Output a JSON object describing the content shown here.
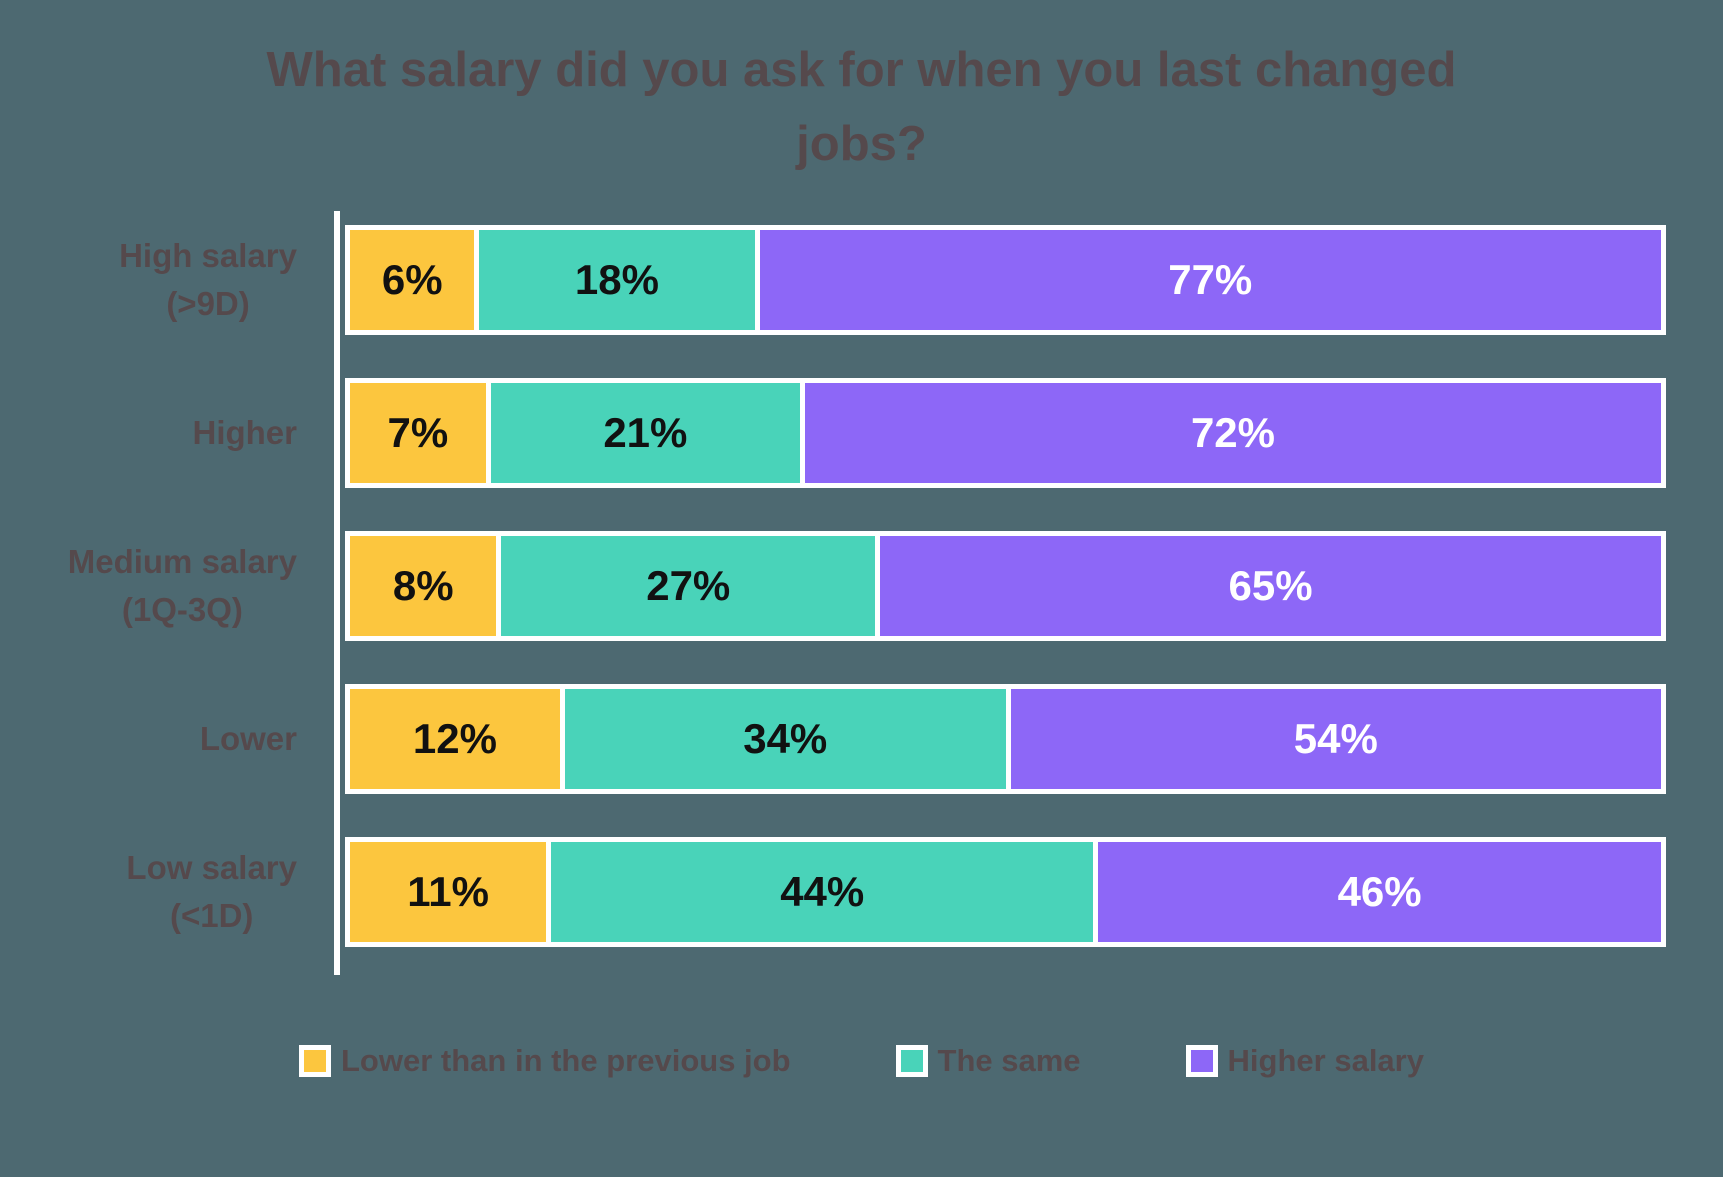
{
  "title": "What salary did you ask for when you last changed jobs?",
  "colors": {
    "background": "#4D6971",
    "axis_and_borders": "#FFFFFF",
    "title_text": "#55494C",
    "category_label_text": "#55494C",
    "legend_text": "#55494C",
    "value_text_on_yellow_teal": "#111111",
    "value_text_on_purple": "#FFFFFF"
  },
  "chart_data": {
    "type": "bar",
    "orientation": "horizontal",
    "stacked": true,
    "normalized_to_100_percent": true,
    "title": "What salary did you ask for when you last changed jobs?",
    "categories": [
      "High salary\n(>9D)",
      "Higher",
      "Medium salary\n(1Q-3Q)",
      "Lower",
      "Low salary\n(<1D)"
    ],
    "series": [
      {
        "name": "Lower than in the previous job",
        "color": "#FCC63E",
        "value_text_color": "#111111",
        "values": [
          6,
          7,
          8,
          12,
          11
        ]
      },
      {
        "name": "The same",
        "color": "#49D3B9",
        "value_text_color": "#111111",
        "values": [
          18,
          21,
          27,
          34,
          44
        ]
      },
      {
        "name": "Higher salary",
        "color": "#8D67F7",
        "value_text_color": "#FFFFFF",
        "values": [
          77,
          72,
          65,
          54,
          46
        ]
      }
    ],
    "value_label_format": "{value}%",
    "value_labels": [
      [
        "6%",
        "18%",
        "77%"
      ],
      [
        "7%",
        "21%",
        "72%"
      ],
      [
        "8%",
        "27%",
        "65%"
      ],
      [
        "12%",
        "34%",
        "54%"
      ],
      [
        "11%",
        "44%",
        "46%"
      ]
    ],
    "xlabel": "",
    "ylabel": "",
    "grid": false,
    "legend_position": "bottom"
  },
  "legend": {
    "items": [
      {
        "label": "Lower than in the previous job",
        "color": "#FCC63E"
      },
      {
        "label": "The same",
        "color": "#49D3B9"
      },
      {
        "label": "Higher salary",
        "color": "#8D67F7"
      }
    ]
  }
}
